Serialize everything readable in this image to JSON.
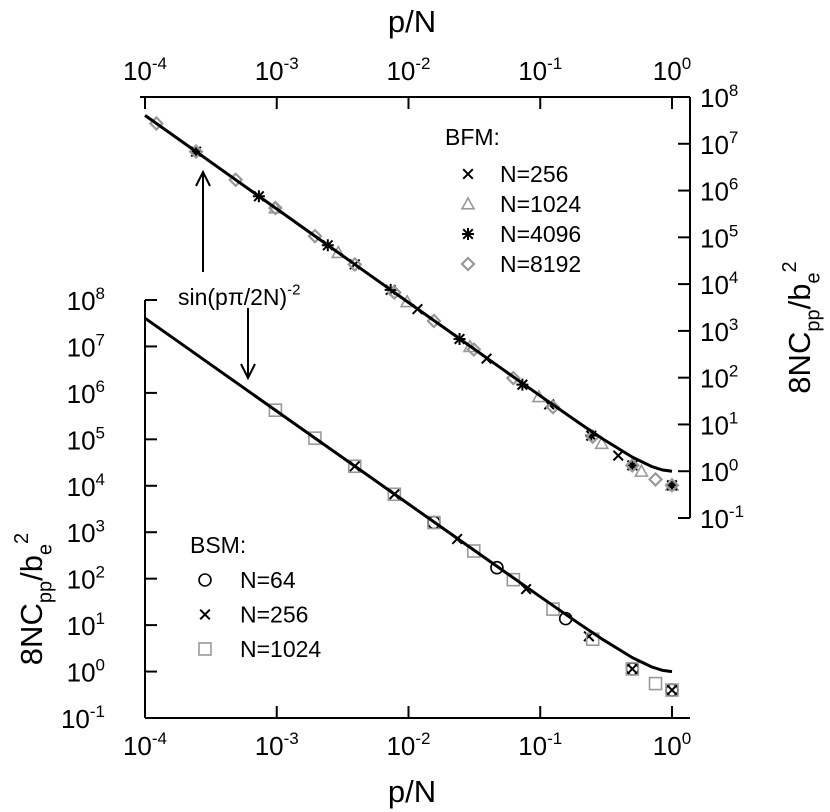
{
  "chart_data": [
    {
      "type": "scatter",
      "x_axis": "top",
      "y_axis": "right",
      "xlog": true,
      "ylog": true,
      "xlabel": "p/N",
      "ylabel": [
        {
          "text": "8NC"
        },
        {
          "text": "pp",
          "shift": "sub"
        },
        {
          "text": "/b"
        },
        {
          "text": "e",
          "shift": "sub"
        },
        {
          "text": "2",
          "shift": "super"
        }
      ],
      "legend_title": "BFM:",
      "xlim": [
        0.0001,
        1.37
      ],
      "ylim": [
        0.1,
        100000000
      ],
      "xticks": [
        {
          "value": 0.0001,
          "label": "10",
          "exponent": "-4"
        },
        {
          "value": 0.001,
          "label": "10",
          "exponent": "-3"
        },
        {
          "value": 0.01,
          "label": "10",
          "exponent": "-2"
        },
        {
          "value": 0.1,
          "label": "10",
          "exponent": "-1"
        },
        {
          "value": 1,
          "label": "10",
          "exponent": "0"
        }
      ],
      "yticks": [
        {
          "value": 0.1,
          "label": "10",
          "exponent": "-1"
        },
        {
          "value": 1,
          "label": "10",
          "exponent": "0"
        },
        {
          "value": 10,
          "label": "10",
          "exponent": "1"
        },
        {
          "value": 100,
          "label": "10",
          "exponent": "2"
        },
        {
          "value": 1000,
          "label": "10",
          "exponent": "3"
        },
        {
          "value": 10000,
          "label": "10",
          "exponent": "4"
        },
        {
          "value": 100000,
          "label": "10",
          "exponent": "5"
        },
        {
          "value": 1000000,
          "label": "10",
          "exponent": "6"
        },
        {
          "value": 10000000,
          "label": "10",
          "exponent": "7"
        },
        {
          "value": 100000000,
          "label": "10",
          "exponent": "8"
        }
      ],
      "curve": {
        "color": "#000000",
        "x": [
          0.0001,
          0.0002,
          0.0005,
          0.001,
          0.002,
          0.005,
          0.01,
          0.02,
          0.05,
          0.1,
          0.2,
          0.3,
          0.5,
          0.7,
          0.85,
          1
        ],
        "values": [
          40500000,
          10130000,
          1620000,
          405000,
          101300,
          16210,
          4053,
          1013,
          162.3,
          40.9,
          10.47,
          4.85,
          2,
          1.26,
          1.06,
          1
        ]
      },
      "series": [
        {
          "name": "N=256",
          "color": "#000000",
          "marker": "cross",
          "x": [
            0.00391,
            0.0117,
            0.0391,
            0.117,
            0.391,
            1
          ],
          "values": [
            26400,
            2920,
            255,
            26.8,
            2.16,
            0.5
          ]
        },
        {
          "name": "N=1024",
          "color": "#999999",
          "marker": "triangle",
          "x": [
            0.000977,
            0.00293,
            0.00977,
            0.0293,
            0.0977,
            0.293,
            0.586,
            1
          ],
          "values": [
            424000,
            47100,
            4200,
            459,
            39,
            3.92,
            0.995,
            0.5
          ]
        },
        {
          "name": "N=4096",
          "color": "#000000",
          "marker": "asterisk",
          "x": [
            0.000244,
            0.000732,
            0.00244,
            0.00732,
            0.0244,
            0.0732,
            0.244,
            0.5,
            1
          ],
          "values": [
            6800000,
            756000,
            67800,
            7510,
            672,
            70.8,
            5.75,
            1.33,
            0.5
          ]
        },
        {
          "name": "N=8192",
          "color": "#999999",
          "marker": "diamond",
          "x": [
            0.000122,
            0.000244,
            0.000488,
            0.000977,
            0.00195,
            0.00391,
            0.00781,
            0.0156,
            0.0313,
            0.0625,
            0.125,
            0.25,
            0.5,
            0.75,
            1
          ],
          "values": [
            27200000,
            6800000,
            1700000,
            424000,
            106000,
            26400,
            6590,
            1630,
            400,
            97.9,
            23.4,
            5.46,
            1.33,
            0.669,
            0.5
          ]
        }
      ]
    },
    {
      "type": "scatter",
      "x_axis": "bottom",
      "y_axis": "left",
      "xlog": true,
      "ylog": true,
      "xlabel": "p/N",
      "ylabel": [
        {
          "text": "8NC"
        },
        {
          "text": "pp",
          "shift": "sub"
        },
        {
          "text": "/b"
        },
        {
          "text": "e",
          "shift": "sub"
        },
        {
          "text": "2",
          "shift": "super"
        }
      ],
      "legend_title": "BSM:",
      "annotation": [
        {
          "text": "sin(pπ/2N)"
        },
        {
          "text": "-2",
          "shift": "super"
        }
      ],
      "xlim": [
        0.0001,
        1.37
      ],
      "ylim": [
        0.1,
        100000000
      ],
      "xticks": [
        {
          "value": 0.0001,
          "label": "10",
          "exponent": "-4"
        },
        {
          "value": 0.001,
          "label": "10",
          "exponent": "-3"
        },
        {
          "value": 0.01,
          "label": "10",
          "exponent": "-2"
        },
        {
          "value": 0.1,
          "label": "10",
          "exponent": "-1"
        },
        {
          "value": 1,
          "label": "10",
          "exponent": "0"
        }
      ],
      "yticks": [
        {
          "value": 0.1,
          "label": "10",
          "exponent": "-1"
        },
        {
          "value": 1,
          "label": "10",
          "exponent": "0"
        },
        {
          "value": 10,
          "label": "10",
          "exponent": "1"
        },
        {
          "value": 100,
          "label": "10",
          "exponent": "2"
        },
        {
          "value": 1000,
          "label": "10",
          "exponent": "3"
        },
        {
          "value": 10000,
          "label": "10",
          "exponent": "4"
        },
        {
          "value": 100000,
          "label": "10",
          "exponent": "5"
        },
        {
          "value": 1000000,
          "label": "10",
          "exponent": "6"
        },
        {
          "value": 10000000,
          "label": "10",
          "exponent": "7"
        },
        {
          "value": 100000000,
          "label": "10",
          "exponent": "8"
        }
      ],
      "curve": {
        "color": "#000000",
        "x": [
          0.0001,
          0.0002,
          0.0005,
          0.001,
          0.002,
          0.005,
          0.01,
          0.02,
          0.05,
          0.1,
          0.2,
          0.3,
          0.5,
          0.7,
          0.85,
          1
        ],
        "values": [
          40500000,
          10130000,
          1620000,
          405000,
          101300,
          16210,
          4053,
          1013,
          162.3,
          40.9,
          10.47,
          4.85,
          2,
          1.26,
          1.06,
          1
        ]
      },
      "series": [
        {
          "name": "N=64",
          "color": "#000000",
          "marker": "circle",
          "x": [
            0.0156,
            0.0469,
            0.156,
            0.5,
            1
          ],
          "values": [
            1620,
            172,
            13.8,
            1.14,
            0.4
          ]
        },
        {
          "name": "N=256",
          "color": "#000000",
          "marker": "cross",
          "x": [
            0.00391,
            0.00781,
            0.0234,
            0.0781,
            0.234,
            0.5,
            1
          ],
          "values": [
            26300,
            6560,
            714,
            59.7,
            5.73,
            1.14,
            0.4
          ]
        },
        {
          "name": "N=1024",
          "color": "#999999",
          "marker": "square",
          "x": [
            0.000977,
            0.00195,
            0.00391,
            0.00781,
            0.0156,
            0.0313,
            0.0625,
            0.125,
            0.25,
            0.5,
            0.75,
            1
          ],
          "values": [
            424000,
            106000,
            26300,
            6560,
            1620,
            394,
            95.1,
            22.1,
            4.97,
            1.14,
            0.551,
            0.4
          ]
        }
      ]
    }
  ]
}
